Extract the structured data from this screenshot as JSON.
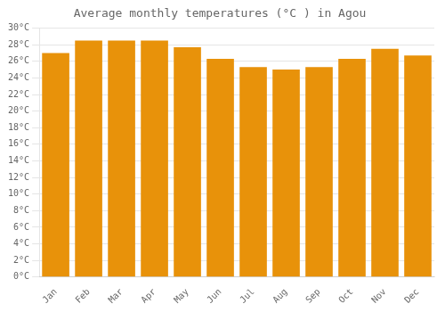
{
  "chart_data": {
    "type": "bar",
    "title": "Average monthly temperatures (°C ) in Agou",
    "categories": [
      "Jan",
      "Feb",
      "Mar",
      "Apr",
      "May",
      "Jun",
      "Jul",
      "Aug",
      "Sep",
      "Oct",
      "Nov",
      "Dec"
    ],
    "values": [
      27.0,
      28.5,
      28.5,
      28.5,
      27.7,
      26.3,
      25.3,
      25.0,
      25.3,
      26.3,
      27.5,
      26.7
    ],
    "color": "#E8920A",
    "ylim": [
      0,
      30
    ],
    "yticks": [
      {
        "value": 0,
        "label": "0°C"
      },
      {
        "value": 2,
        "label": "2°C"
      },
      {
        "value": 4,
        "label": "4°C"
      },
      {
        "value": 6,
        "label": "6°C"
      },
      {
        "value": 8,
        "label": "8°C"
      },
      {
        "value": 10,
        "label": "10°C"
      },
      {
        "value": 12,
        "label": "12°C"
      },
      {
        "value": 14,
        "label": "14°C"
      },
      {
        "value": 16,
        "label": "16°C"
      },
      {
        "value": 18,
        "label": "18°C"
      },
      {
        "value": 20,
        "label": "20°C"
      },
      {
        "value": 22,
        "label": "22°C"
      },
      {
        "value": 24,
        "label": "24°C"
      },
      {
        "value": 26,
        "label": "26°C"
      },
      {
        "value": 28,
        "label": "28°C"
      },
      {
        "value": 30,
        "label": "30°C"
      }
    ],
    "grid": true
  }
}
